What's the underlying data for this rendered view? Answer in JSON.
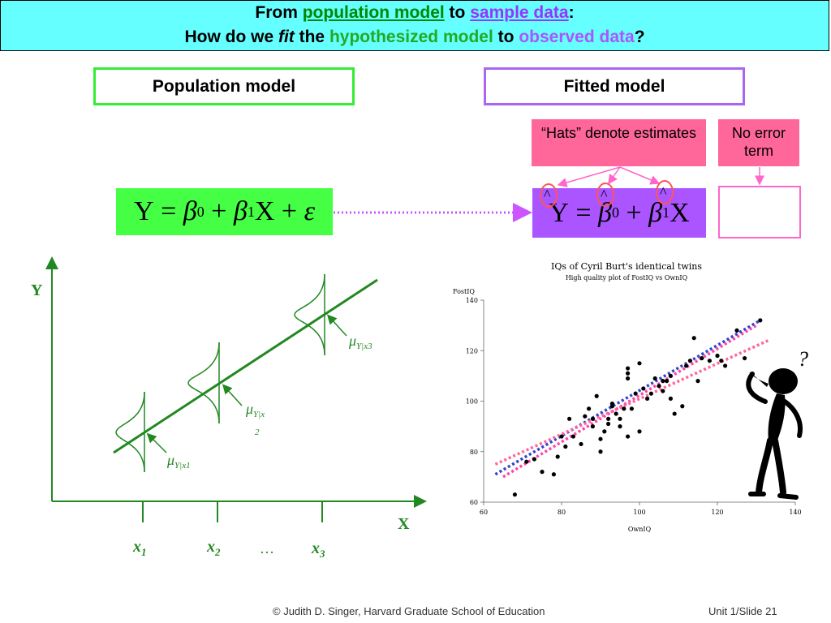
{
  "header": {
    "l1_a": "From ",
    "l1_b": "population model",
    "l1_c": " to ",
    "l1_d": "sample data",
    "l1_e": ":",
    "l2_a": "How do we ",
    "l2_b": "fit",
    "l2_c": " the ",
    "l2_d": "hypothesized model",
    "l2_e": " to ",
    "l2_f": "observed data",
    "l2_g": "?"
  },
  "pop_box": "Population model",
  "fit_box": "Fitted model",
  "hats_note": "“Hats” denote estimates",
  "noerr_note": "No error term",
  "diagram": {
    "y_label": "Y",
    "x_label": "X",
    "x1": "x",
    "x1_sub": "1",
    "x2": "x",
    "x2_sub": "2",
    "x3": "x",
    "x3_sub": "3",
    "dots": "…",
    "mu1": "μ",
    "mu1_sub": "Y|x1",
    "mu2": "μ",
    "mu2_sub": "Y|x",
    "mu2_sub2": "2",
    "mu3": "μ",
    "mu3_sub": "Y|x3"
  },
  "chart_data": {
    "type": "scatter",
    "title": "IQs of Cyril Burt's identical twins",
    "subtitle": "High quality plot of FostIQ vs OwnIQ",
    "xlabel": "OwnIQ",
    "ylabel": "FostIQ",
    "xlim": [
      60,
      140
    ],
    "ylim": [
      60,
      140
    ],
    "xticks": [
      "60",
      "80",
      "100",
      "120",
      "140"
    ],
    "yticks": [
      "60",
      "80",
      "100",
      "120",
      "140"
    ],
    "points": [
      [
        68,
        63
      ],
      [
        71,
        76
      ],
      [
        73,
        77
      ],
      [
        75,
        72
      ],
      [
        78,
        71
      ],
      [
        79,
        78
      ],
      [
        80,
        86
      ],
      [
        81,
        82
      ],
      [
        82,
        93
      ],
      [
        83,
        86
      ],
      [
        85,
        83
      ],
      [
        86,
        94
      ],
      [
        87,
        97
      ],
      [
        88,
        90
      ],
      [
        88,
        93
      ],
      [
        89,
        102
      ],
      [
        90,
        80
      ],
      [
        90,
        85
      ],
      [
        91,
        88
      ],
      [
        92,
        91
      ],
      [
        92,
        93
      ],
      [
        93,
        98
      ],
      [
        93,
        99
      ],
      [
        94,
        95
      ],
      [
        95,
        90
      ],
      [
        95,
        93
      ],
      [
        96,
        97
      ],
      [
        97,
        86
      ],
      [
        97,
        109
      ],
      [
        97,
        111
      ],
      [
        97,
        113
      ],
      [
        98,
        97
      ],
      [
        99,
        103
      ],
      [
        100,
        88
      ],
      [
        100,
        115
      ],
      [
        101,
        105
      ],
      [
        102,
        101
      ],
      [
        103,
        103
      ],
      [
        104,
        109
      ],
      [
        105,
        106
      ],
      [
        106,
        108
      ],
      [
        106,
        104
      ],
      [
        107,
        108
      ],
      [
        108,
        101
      ],
      [
        108,
        110
      ],
      [
        109,
        95
      ],
      [
        111,
        98
      ],
      [
        112,
        114
      ],
      [
        113,
        116
      ],
      [
        114,
        125
      ],
      [
        115,
        108
      ],
      [
        116,
        117
      ],
      [
        118,
        116
      ],
      [
        120,
        118
      ],
      [
        121,
        116
      ],
      [
        122,
        114
      ],
      [
        125,
        128
      ],
      [
        127,
        117
      ],
      [
        131,
        132
      ]
    ],
    "lines": [
      {
        "name": "",
        "color": "#3344cc",
        "x": [
          63,
          131
        ],
        "y": [
          71,
          132
        ]
      },
      {
        "name": "",
        "color": "#ff44aa",
        "x": [
          65,
          130
        ],
        "y": [
          70,
          130
        ]
      },
      {
        "name": "",
        "color": "#ff6699",
        "x": [
          63,
          133
        ],
        "y": [
          75,
          124
        ]
      }
    ],
    "grid": false
  },
  "footer": {
    "copyright": "© Judith D. Singer, Harvard Graduate School of Education",
    "slide": "Unit 1/Slide 21"
  }
}
